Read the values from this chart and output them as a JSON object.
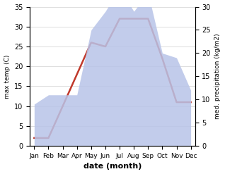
{
  "months": [
    "Jan",
    "Feb",
    "Mar",
    "Apr",
    "May",
    "Jun",
    "Jul",
    "Aug",
    "Sep",
    "Oct",
    "Nov",
    "Dec"
  ],
  "temp": [
    2,
    2,
    10,
    18,
    26,
    25,
    32,
    32,
    32,
    22,
    11,
    11
  ],
  "precip": [
    9,
    11,
    11,
    11,
    25,
    29,
    34,
    29,
    33,
    20,
    19,
    12
  ],
  "temp_color": "#c0392b",
  "precip_color": "#b8c4e8",
  "xlabel": "date (month)",
  "ylabel_left": "max temp (C)",
  "ylabel_right": "med. precipitation (kg/m2)",
  "ylim_left": [
    0,
    35
  ],
  "ylim_right": [
    0,
    30
  ],
  "yticks_left": [
    0,
    5,
    10,
    15,
    20,
    25,
    30,
    35
  ],
  "yticks_right": [
    0,
    5,
    10,
    15,
    20,
    25,
    30
  ],
  "background_color": "#ffffff",
  "grid_color": "#d0d0d0"
}
